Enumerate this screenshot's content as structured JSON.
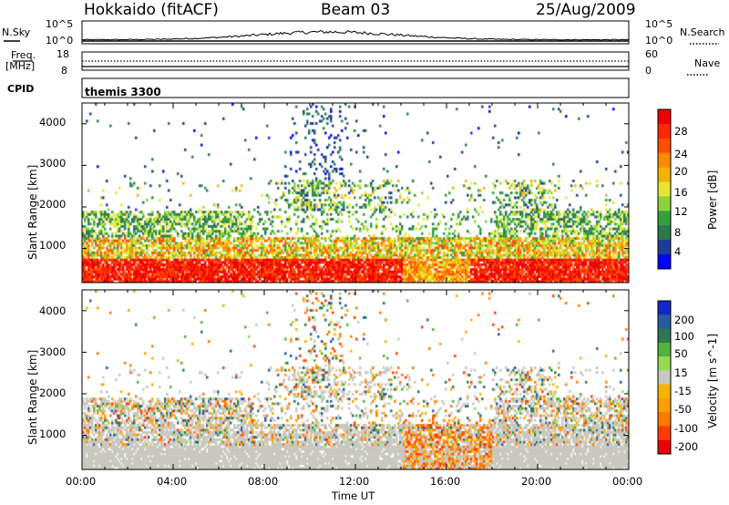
{
  "header": {
    "station": "Hokkaido (fitACF)",
    "beam": "Beam 03",
    "date": "25/Aug/2009"
  },
  "top_strip": {
    "nsky_label": "N.Sky",
    "nsky_ticks": [
      "10^5",
      "10^0"
    ],
    "nsearch_label": "N.Search",
    "nsearch_ticks": [
      "10^5",
      "10^0"
    ],
    "freq_label": "Freq.",
    "freq_unit": "[MHz]",
    "freq_ticks": [
      "18",
      "8"
    ],
    "nave_label": "Nave",
    "nave_ticks": [
      "60",
      "0"
    ],
    "cpid_label": "CPID",
    "cpid_value": "themis 3300"
  },
  "chart_data": [
    {
      "type": "heatmap",
      "title": "",
      "xlabel": "Time UT",
      "ylabel": "Slant Range [km]",
      "x_ticks": [
        "00:00",
        "04:00",
        "08:00",
        "12:00",
        "16:00",
        "20:00",
        "00:00"
      ],
      "y_ticks": [
        "1000",
        "2000",
        "3000",
        "4000"
      ],
      "ylim": [
        180,
        4500
      ],
      "colorbar": {
        "label": "Power [dB]",
        "ticks": [
          "28",
          "24",
          "20",
          "16",
          "12",
          "8",
          "4"
        ],
        "colors": [
          "#e8e8e8",
          "#0000ff",
          "#1e3c96",
          "#2d7850",
          "#32a03c",
          "#8cd23c",
          "#e6e632",
          "#f5b400",
          "#ff8c00",
          "#ff5000",
          "#ff2800",
          "#f00000"
        ]
      }
    },
    {
      "type": "heatmap",
      "title": "",
      "xlabel": "Time UT",
      "ylabel": "Slant Range [km]",
      "x_ticks": [
        "00:00",
        "04:00",
        "08:00",
        "12:00",
        "16:00",
        "20:00",
        "00:00"
      ],
      "y_ticks": [
        "1000",
        "2000",
        "3000",
        "4000"
      ],
      "ylim": [
        180,
        4500
      ],
      "colorbar": {
        "label": "Velocity [m s^-1]",
        "ticks": [
          "200",
          "100",
          "50",
          "15",
          "-15",
          "-50",
          "-100",
          "-200"
        ],
        "colors": [
          "#1428c8",
          "#285aa0",
          "#2d7850",
          "#50b43c",
          "#96dc50",
          "#c8c8c0",
          "#f5b400",
          "#ffa000",
          "#ff7800",
          "#ff3c00",
          "#f00000"
        ]
      }
    }
  ]
}
